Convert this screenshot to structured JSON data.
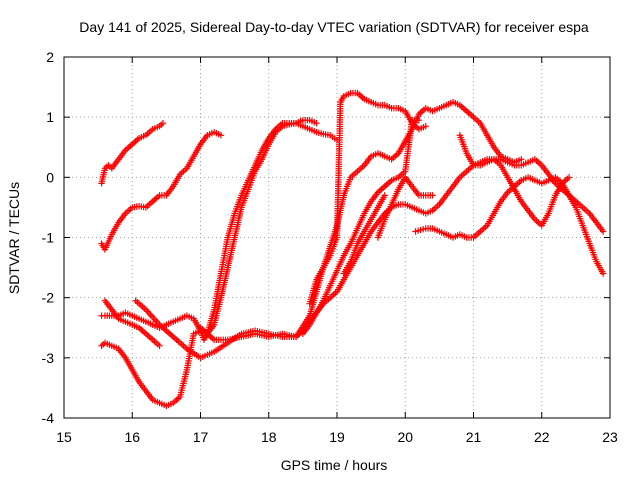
{
  "chart_data": {
    "type": "scatter",
    "title": "Day 141 of 2025, Sidereal Day-to-day VTEC variation (SDTVAR) for receiver espa",
    "xlabel": "GPS time / hours",
    "ylabel": "SDTVAR / TECUs",
    "xlim": [
      15,
      23
    ],
    "ylim": [
      -4,
      2
    ],
    "xticks": [
      "15",
      "16",
      "17",
      "18",
      "19",
      "20",
      "21",
      "22",
      "23"
    ],
    "yticks": [
      "-4",
      "-3",
      "-2",
      "-1",
      "0",
      "1",
      "2"
    ],
    "grid": true,
    "marker": "plus",
    "color": "#ff0000",
    "series": [
      {
        "x": [
          15.55,
          15.6,
          15.65,
          15.7,
          15.8,
          15.9,
          16.0,
          16.1,
          16.2,
          16.3,
          16.4,
          16.45
        ],
        "y": [
          -0.1,
          0.15,
          0.2,
          0.15,
          0.3,
          0.45,
          0.55,
          0.65,
          0.7,
          0.8,
          0.85,
          0.9
        ]
      },
      {
        "x": [
          15.55,
          15.6,
          15.7,
          15.8,
          15.9,
          16.0,
          16.1,
          16.2,
          16.3,
          16.4,
          16.5,
          16.6,
          16.7,
          16.8,
          16.9,
          17.0,
          17.1,
          17.2,
          17.3
        ],
        "y": [
          -1.1,
          -1.2,
          -0.95,
          -0.75,
          -0.6,
          -0.5,
          -0.48,
          -0.5,
          -0.4,
          -0.3,
          -0.3,
          -0.15,
          0.05,
          0.15,
          0.35,
          0.55,
          0.7,
          0.75,
          0.7
        ]
      },
      {
        "x": [
          15.55,
          15.6,
          15.7,
          15.8,
          15.9,
          16.0,
          16.1,
          16.2,
          16.3,
          16.4,
          16.5,
          16.6,
          16.7,
          16.8,
          16.9,
          17.0,
          17.05,
          17.1,
          17.2,
          17.3,
          17.4,
          17.5,
          17.6,
          17.7,
          17.8,
          17.9,
          18.0,
          18.1,
          18.2,
          18.3,
          18.4,
          18.5,
          18.6,
          18.7,
          18.8,
          18.9,
          19.0
        ],
        "y": [
          -2.3,
          -2.3,
          -2.3,
          -2.3,
          -2.25,
          -2.3,
          -2.35,
          -2.4,
          -2.45,
          -2.5,
          -2.45,
          -2.4,
          -2.35,
          -2.3,
          -2.35,
          -2.55,
          -2.7,
          -2.6,
          -2.2,
          -1.6,
          -1.0,
          -0.6,
          -0.3,
          -0.05,
          0.2,
          0.45,
          0.65,
          0.8,
          0.9,
          0.9,
          0.9,
          0.85,
          0.8,
          0.75,
          0.72,
          0.7,
          0.62
        ]
      },
      {
        "x": [
          15.55,
          15.6,
          15.7,
          15.8,
          15.9,
          16.0,
          16.1,
          16.2,
          16.3,
          16.4,
          16.5,
          16.6,
          16.7,
          16.8,
          16.9,
          17.0,
          17.1,
          17.2,
          17.3,
          17.4,
          17.5,
          17.6,
          17.7,
          17.8,
          17.9,
          18.0,
          18.1,
          18.2,
          18.3,
          18.4,
          18.5,
          18.6,
          18.7
        ],
        "y": [
          -2.8,
          -2.75,
          -2.8,
          -2.85,
          -3.0,
          -3.2,
          -3.4,
          -3.55,
          -3.7,
          -3.75,
          -3.8,
          -3.75,
          -3.65,
          -3.2,
          -2.6,
          -2.55,
          -2.6,
          -2.45,
          -2.0,
          -1.5,
          -1.0,
          -0.5,
          -0.2,
          0.1,
          0.3,
          0.55,
          0.75,
          0.85,
          0.88,
          0.9,
          0.95,
          0.95,
          0.9
        ]
      },
      {
        "x": [
          15.6,
          15.7,
          15.8,
          15.9,
          16.0,
          16.1,
          16.2,
          16.3,
          16.4
        ],
        "y": [
          -2.05,
          -2.2,
          -2.35,
          -2.4,
          -2.45,
          -2.5,
          -2.6,
          -2.7,
          -2.8
        ]
      },
      {
        "x": [
          16.05,
          16.2,
          16.4,
          16.6,
          16.8,
          17.0,
          17.2,
          17.4,
          17.6,
          17.8,
          18.0,
          18.2,
          18.4,
          18.5,
          18.6,
          18.7,
          18.8,
          18.9,
          19.0,
          19.1,
          19.2,
          19.3,
          19.4,
          19.5,
          19.6,
          19.7,
          19.8,
          19.9,
          20.0,
          20.1,
          20.2,
          20.3,
          20.4,
          20.5,
          20.6,
          20.7,
          20.8,
          20.9,
          21.0,
          21.1,
          21.2,
          21.3,
          21.4,
          21.5,
          21.6,
          21.7,
          21.8,
          21.9,
          22.0,
          22.1,
          22.2,
          22.3,
          22.4,
          22.5,
          22.6,
          22.7,
          22.8,
          22.9
        ],
        "y": [
          -2.05,
          -2.2,
          -2.45,
          -2.65,
          -2.85,
          -3.0,
          -2.9,
          -2.75,
          -2.6,
          -2.55,
          -2.6,
          -2.65,
          -2.65,
          -2.55,
          -2.4,
          -2.25,
          -2.1,
          -2.0,
          -1.9,
          -1.7,
          -1.5,
          -1.3,
          -1.1,
          -0.9,
          -0.75,
          -0.6,
          -0.5,
          -0.45,
          -0.45,
          -0.5,
          -0.55,
          -0.6,
          -0.55,
          -0.45,
          -0.3,
          -0.15,
          0.0,
          0.1,
          0.2,
          0.25,
          0.3,
          0.3,
          0.3,
          0.25,
          0.2,
          0.2,
          0.25,
          0.3,
          0.2,
          0.05,
          -0.1,
          -0.2,
          -0.3,
          -0.4,
          -0.5,
          -0.6,
          -0.75,
          -0.9
        ]
      },
      {
        "x": [
          17.0,
          17.2,
          17.4,
          17.6,
          17.8,
          18.0,
          18.2,
          18.4,
          18.6,
          18.8,
          19.0,
          19.1,
          19.2,
          19.3,
          19.4,
          19.5,
          19.6,
          19.7,
          19.8,
          19.9,
          20.0,
          20.1,
          20.2,
          20.3,
          20.4,
          20.5,
          20.6,
          20.7,
          20.8,
          20.9,
          21.0,
          21.1,
          21.2,
          21.3,
          21.4,
          21.5,
          21.6,
          21.7
        ],
        "y": [
          -2.5,
          -2.7,
          -2.7,
          -2.65,
          -2.6,
          -2.65,
          -2.6,
          -2.65,
          -2.3,
          -1.5,
          -0.8,
          -0.3,
          0.0,
          0.1,
          0.2,
          0.35,
          0.4,
          0.35,
          0.3,
          0.4,
          0.6,
          0.8,
          1.05,
          1.15,
          1.1,
          1.15,
          1.2,
          1.25,
          1.2,
          1.1,
          1.0,
          0.9,
          0.7,
          0.5,
          0.35,
          0.3,
          0.25,
          0.3
        ]
      },
      {
        "x": [
          18.5,
          18.6,
          18.7,
          18.8,
          18.9,
          19.0,
          19.1,
          19.2,
          19.3,
          19.4,
          19.5,
          19.6,
          19.7,
          19.8,
          19.9,
          20.0,
          20.1,
          20.2
        ],
        "y": [
          -2.6,
          -2.45,
          -2.25,
          -2.05,
          -1.8,
          -1.55,
          -1.3,
          -1.1,
          -0.85,
          -0.6,
          -0.4,
          -0.25,
          -0.15,
          -0.05,
          0.0,
          0.1,
          0.95,
          0.95
        ]
      },
      {
        "x": [
          18.6,
          18.7,
          18.8,
          18.9,
          19.0,
          19.05,
          19.1,
          19.2,
          19.3,
          19.4,
          19.5,
          19.6,
          19.7,
          19.8,
          19.9,
          20.0,
          20.05,
          20.1,
          20.2,
          20.3
        ],
        "y": [
          -2.1,
          -1.7,
          -1.5,
          -1.3,
          -1.0,
          1.25,
          1.35,
          1.4,
          1.4,
          1.3,
          1.25,
          1.2,
          1.2,
          1.15,
          1.15,
          1.1,
          1.0,
          0.9,
          0.8,
          0.85
        ]
      },
      {
        "x": [
          19.1,
          19.2,
          19.3,
          19.4,
          19.5,
          19.6,
          19.7
        ],
        "y": [
          -1.6,
          -1.4,
          -1.1,
          -0.9,
          -0.7,
          -0.5,
          -0.3
        ]
      },
      {
        "x": [
          19.6,
          19.7,
          19.8,
          19.9,
          20.0,
          20.1,
          20.2,
          20.3,
          20.4
        ],
        "y": [
          -1.0,
          -0.7,
          -0.45,
          -0.2,
          0.0,
          -0.15,
          -0.3,
          -0.3,
          -0.3
        ]
      },
      {
        "x": [
          20.15,
          20.3,
          20.4,
          20.5,
          20.6,
          20.7,
          20.8,
          20.9,
          21.0,
          21.1,
          21.2,
          21.3,
          21.4,
          21.5,
          21.6,
          21.7,
          21.8,
          21.9,
          22.0,
          22.1,
          22.2,
          22.3,
          22.4,
          22.5,
          22.6,
          22.7,
          22.8,
          22.9
        ],
        "y": [
          -0.9,
          -0.85,
          -0.85,
          -0.9,
          -0.95,
          -1.0,
          -0.95,
          -1.0,
          -1.0,
          -0.9,
          -0.8,
          -0.6,
          -0.4,
          -0.25,
          -0.15,
          -0.05,
          0.0,
          -0.05,
          -0.1,
          -0.05,
          0.0,
          -0.1,
          -0.3,
          -0.5,
          -0.8,
          -1.1,
          -1.4,
          -1.6
        ]
      },
      {
        "x": [
          20.8,
          20.9,
          21.0,
          21.1,
          21.2,
          21.3,
          21.4,
          21.5,
          21.6,
          21.7,
          21.8,
          21.9,
          22.0,
          22.1,
          22.2,
          22.3,
          22.4
        ],
        "y": [
          0.7,
          0.4,
          0.2,
          0.2,
          0.25,
          0.3,
          0.2,
          0.0,
          -0.2,
          -0.4,
          -0.55,
          -0.7,
          -0.8,
          -0.6,
          -0.3,
          -0.1,
          0.0
        ]
      }
    ]
  }
}
